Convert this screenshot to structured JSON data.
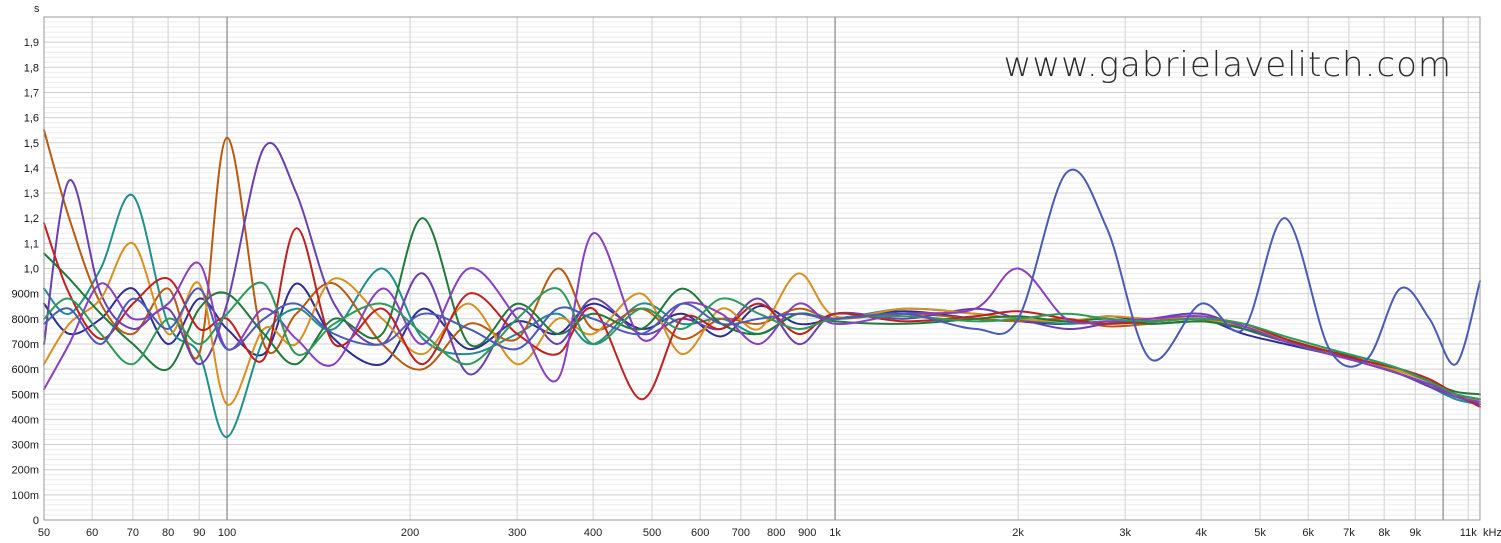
{
  "watermark": "www.gabrielavelitch.com",
  "chart_data": {
    "type": "line",
    "title": "",
    "xlabel": "",
    "ylabel": "",
    "x_scale": "log",
    "x_range": [
      50,
      11500
    ],
    "y_range": [
      0,
      2.0
    ],
    "y_unit_label": "s",
    "x_unit_label": "kHz",
    "grid": true,
    "legend": "none",
    "x_ticks": [
      {
        "value": 50,
        "label": "50"
      },
      {
        "value": 60,
        "label": "60"
      },
      {
        "value": 70,
        "label": "70"
      },
      {
        "value": 80,
        "label": "80"
      },
      {
        "value": 90,
        "label": "90"
      },
      {
        "value": 100,
        "label": "100"
      },
      {
        "value": 200,
        "label": "200"
      },
      {
        "value": 300,
        "label": "300"
      },
      {
        "value": 400,
        "label": "400"
      },
      {
        "value": 500,
        "label": "500"
      },
      {
        "value": 600,
        "label": "600"
      },
      {
        "value": 700,
        "label": "700"
      },
      {
        "value": 800,
        "label": "800"
      },
      {
        "value": 900,
        "label": "900"
      },
      {
        "value": 1000,
        "label": "1k"
      },
      {
        "value": 2000,
        "label": "2k"
      },
      {
        "value": 3000,
        "label": "3k"
      },
      {
        "value": 4000,
        "label": "4k"
      },
      {
        "value": 5000,
        "label": "5k"
      },
      {
        "value": 6000,
        "label": "6k"
      },
      {
        "value": 7000,
        "label": "7k"
      },
      {
        "value": 8000,
        "label": "8k"
      },
      {
        "value": 9000,
        "label": "9k"
      },
      {
        "value": 11000,
        "label": "11k"
      }
    ],
    "y_ticks": [
      {
        "value": 0,
        "label": "0",
        "major": true
      },
      {
        "value": 0.1,
        "label": "100m",
        "major": false
      },
      {
        "value": 0.2,
        "label": "200m",
        "major": false
      },
      {
        "value": 0.3,
        "label": "300m",
        "major": false
      },
      {
        "value": 0.4,
        "label": "400m",
        "major": false
      },
      {
        "value": 0.5,
        "label": "500m",
        "major": true
      },
      {
        "value": 0.6,
        "label": "600m",
        "major": true
      },
      {
        "value": 0.7,
        "label": "700m",
        "major": true
      },
      {
        "value": 0.8,
        "label": "800m",
        "major": true
      },
      {
        "value": 0.9,
        "label": "900m",
        "major": true
      },
      {
        "value": 1.0,
        "label": "1,0",
        "major": true
      },
      {
        "value": 1.1,
        "label": "1,1",
        "major": false
      },
      {
        "value": 1.2,
        "label": "1,2",
        "major": true
      },
      {
        "value": 1.3,
        "label": "1,3",
        "major": false
      },
      {
        "value": 1.4,
        "label": "1,4",
        "major": true
      },
      {
        "value": 1.5,
        "label": "1,5",
        "major": true
      },
      {
        "value": 1.6,
        "label": "1,6",
        "major": true
      },
      {
        "value": 1.7,
        "label": "1,7",
        "major": false
      },
      {
        "value": 1.8,
        "label": "1,8",
        "major": true
      },
      {
        "value": 1.9,
        "label": "1,9",
        "major": false
      }
    ],
    "series_anchor_x": [
      50,
      55,
      62,
      70,
      80,
      90,
      100,
      115,
      130,
      150,
      180,
      210,
      250,
      300,
      350,
      400,
      480,
      560,
      650,
      750,
      870,
      1000,
      1300,
      1700,
      2000,
      2400,
      2800,
      3300,
      4000,
      4700,
      5500,
      6500,
      7500,
      8500,
      9500,
      10500,
      11500
    ],
    "series": [
      {
        "color": "#2d2d96",
        "values": [
          0.86,
          0.74,
          0.8,
          0.92,
          0.7,
          0.88,
          0.76,
          0.66,
          0.94,
          0.72,
          0.62,
          0.84,
          0.68,
          0.79,
          0.74,
          0.86,
          0.76,
          0.82,
          0.73,
          0.85,
          0.78,
          0.8,
          0.83,
          0.8,
          0.79,
          0.78,
          0.81,
          0.79,
          0.8,
          0.74,
          0.7,
          0.66,
          0.62,
          0.58,
          0.54,
          0.5,
          0.48
        ]
      },
      {
        "color": "#1e8f8f",
        "values": [
          0.92,
          0.82,
          1.0,
          1.29,
          0.78,
          0.66,
          0.33,
          0.72,
          0.84,
          0.76,
          1.0,
          0.72,
          0.66,
          0.74,
          0.82,
          0.7,
          0.86,
          0.78,
          0.8,
          0.74,
          0.82,
          0.8,
          0.84,
          0.82,
          0.8,
          0.78,
          0.79,
          0.78,
          0.79,
          0.77,
          0.71,
          0.66,
          0.63,
          0.58,
          0.53,
          0.48,
          0.46
        ]
      },
      {
        "color": "#b85a10",
        "values": [
          1.55,
          1.2,
          0.86,
          0.74,
          0.92,
          0.66,
          1.52,
          0.7,
          0.82,
          0.94,
          0.7,
          0.6,
          0.78,
          0.72,
          1.0,
          0.76,
          0.84,
          0.72,
          0.8,
          0.78,
          0.84,
          0.8,
          0.82,
          0.8,
          0.79,
          0.8,
          0.77,
          0.78,
          0.79,
          0.78,
          0.72,
          0.67,
          0.63,
          0.6,
          0.55,
          0.5,
          0.46
        ]
      },
      {
        "color": "#6a3fb0",
        "values": [
          0.7,
          1.35,
          0.9,
          0.76,
          0.84,
          0.62,
          0.86,
          1.48,
          1.3,
          0.86,
          0.7,
          0.98,
          0.58,
          0.84,
          0.7,
          0.88,
          0.74,
          0.8,
          0.76,
          0.88,
          0.7,
          0.82,
          0.8,
          0.84,
          0.8,
          0.76,
          0.78,
          0.8,
          0.82,
          0.76,
          0.71,
          0.67,
          0.62,
          0.58,
          0.53,
          0.49,
          0.46
        ]
      },
      {
        "color": "#d89020",
        "values": [
          0.62,
          0.78,
          0.88,
          1.1,
          0.74,
          0.94,
          0.46,
          0.76,
          0.7,
          0.96,
          0.8,
          0.66,
          0.86,
          0.62,
          0.8,
          0.74,
          0.9,
          0.66,
          0.84,
          0.76,
          0.98,
          0.81,
          0.84,
          0.82,
          0.8,
          0.79,
          0.81,
          0.8,
          0.8,
          0.77,
          0.72,
          0.67,
          0.63,
          0.59,
          0.55,
          0.5,
          0.47
        ]
      },
      {
        "color": "#1f7a3a",
        "values": [
          1.06,
          0.96,
          0.82,
          0.7,
          0.6,
          0.84,
          0.9,
          0.74,
          0.62,
          0.8,
          0.74,
          1.2,
          0.7,
          0.86,
          0.74,
          0.82,
          0.76,
          0.92,
          0.78,
          0.74,
          0.82,
          0.79,
          0.78,
          0.8,
          0.81,
          0.79,
          0.8,
          0.78,
          0.79,
          0.76,
          0.71,
          0.67,
          0.64,
          0.6,
          0.55,
          0.51,
          0.5
        ]
      },
      {
        "color": "#c02020",
        "values": [
          1.18,
          0.9,
          0.72,
          0.86,
          0.96,
          0.76,
          0.8,
          0.64,
          1.16,
          0.7,
          0.84,
          0.62,
          0.9,
          0.74,
          0.66,
          0.84,
          0.48,
          0.8,
          0.76,
          0.86,
          0.74,
          0.82,
          0.79,
          0.81,
          0.83,
          0.8,
          0.78,
          0.79,
          0.8,
          0.78,
          0.72,
          0.67,
          0.63,
          0.6,
          0.56,
          0.5,
          0.45
        ]
      },
      {
        "color": "#8a3fc0",
        "values": [
          0.52,
          0.7,
          0.94,
          0.8,
          0.86,
          1.02,
          0.68,
          0.84,
          0.72,
          0.62,
          0.92,
          0.7,
          1.0,
          0.8,
          0.56,
          1.14,
          0.72,
          0.86,
          0.82,
          0.7,
          0.86,
          0.78,
          0.82,
          0.84,
          1.0,
          0.8,
          0.79,
          0.8,
          0.81,
          0.77,
          0.71,
          0.66,
          0.62,
          0.58,
          0.54,
          0.49,
          0.47
        ]
      },
      {
        "color": "#2e9a5a",
        "values": [
          0.8,
          0.88,
          0.74,
          0.62,
          0.8,
          0.7,
          0.82,
          0.94,
          0.66,
          0.78,
          0.86,
          0.74,
          0.62,
          0.8,
          0.92,
          0.7,
          0.84,
          0.76,
          0.88,
          0.82,
          0.76,
          0.8,
          0.81,
          0.79,
          0.8,
          0.82,
          0.8,
          0.79,
          0.8,
          0.78,
          0.73,
          0.68,
          0.64,
          0.6,
          0.55,
          0.5,
          0.48
        ]
      },
      {
        "color": "#4a5ab8",
        "values": [
          0.78,
          0.84,
          0.7,
          0.88,
          0.76,
          0.92,
          0.68,
          0.8,
          0.86,
          0.74,
          0.7,
          0.82,
          0.76,
          0.68,
          0.84,
          0.8,
          0.74,
          0.86,
          0.78,
          0.8,
          0.82,
          0.8,
          0.82,
          0.76,
          0.8,
          1.38,
          1.16,
          0.64,
          0.86,
          0.76,
          1.2,
          0.68,
          0.64,
          0.92,
          0.8,
          0.62,
          0.95
        ]
      }
    ]
  }
}
